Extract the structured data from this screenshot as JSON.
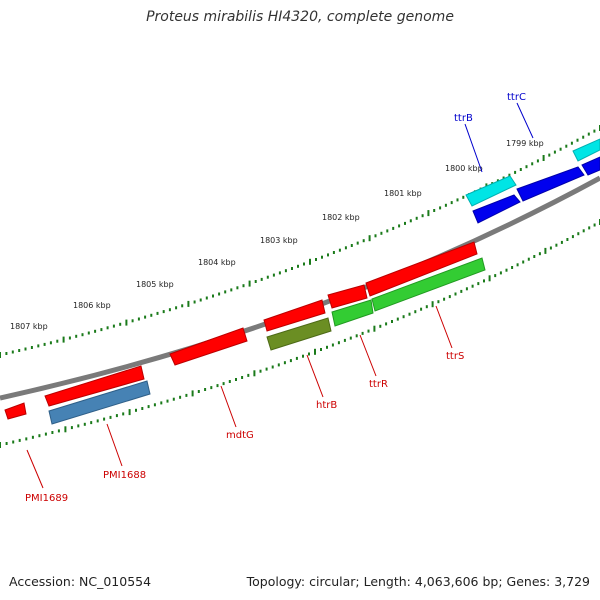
{
  "title": "Proteus mirabilis HI4320, complete genome",
  "footer": {
    "accession": "Accession: NC_010554",
    "summary": "Topology: circular; Length: 4,063,606 bp; Genes: 3,729"
  },
  "ticks": [
    {
      "kb": 1799,
      "label": "1799 kbp"
    },
    {
      "kb": 1800,
      "label": "1800 kbp"
    },
    {
      "kb": 1801,
      "label": "1801 kbp"
    },
    {
      "kb": 1802,
      "label": "1802 kbp"
    },
    {
      "kb": 1803,
      "label": "1803 kbp"
    },
    {
      "kb": 1804,
      "label": "1804 kbp"
    },
    {
      "kb": 1805,
      "label": "1805 kbp"
    },
    {
      "kb": 1806,
      "label": "1806 kbp"
    },
    {
      "kb": 1807,
      "label": "1807 kbp"
    }
  ],
  "gene_labels": [
    {
      "name": "ttrC",
      "color": "#0000cc"
    },
    {
      "name": "ttrB",
      "color": "#0000cc"
    },
    {
      "name": "ttrS",
      "color": "#cc0000"
    },
    {
      "name": "ttrR",
      "color": "#cc0000"
    },
    {
      "name": "htrB",
      "color": "#cc0000"
    },
    {
      "name": "mdtG",
      "color": "#cc0000"
    },
    {
      "name": "PMI1688",
      "color": "#cc0000"
    },
    {
      "name": "PMI1689",
      "color": "#cc0000"
    }
  ],
  "colors": {
    "backbone": "#7a7a7a",
    "tick": "#1a7a1a",
    "cds_red": "#ff0000",
    "cyan": "#00e5e5",
    "blue": "#0000ee",
    "green": "#33cc33",
    "olive": "#6b8e23",
    "steelblue": "#4682b4"
  }
}
